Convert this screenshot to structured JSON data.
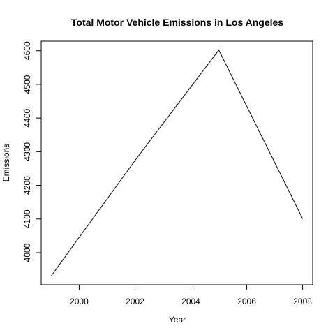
{
  "chart_data": {
    "type": "line",
    "title": "Total Motor Vehicle Emissions in Los Angeles",
    "xlabel": "Year",
    "ylabel": "Emissions",
    "x": [
      1999,
      2002,
      2005,
      2008
    ],
    "series": [
      {
        "values": [
          3931,
          4274,
          4602,
          4101
        ]
      }
    ],
    "xlim": [
      1998.64,
      2008.36
    ],
    "ylim": [
      3904.6,
      4628.4
    ],
    "xticks": [
      2000,
      2002,
      2004,
      2006,
      2008
    ],
    "yticks": [
      4000,
      4100,
      4200,
      4300,
      4400,
      4500,
      4600
    ],
    "grid": false,
    "line_color": "#000000"
  }
}
